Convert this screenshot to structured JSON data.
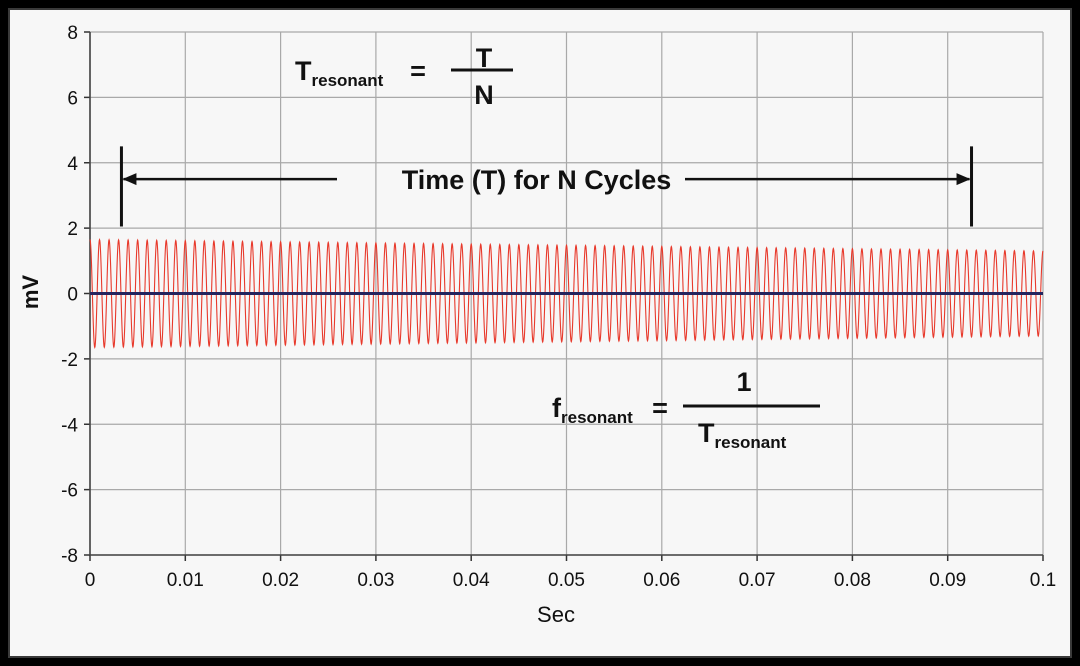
{
  "chart_data": {
    "type": "line",
    "title": "",
    "xlabel": "Sec",
    "ylabel": "mV",
    "xlim": [
      0,
      0.1
    ],
    "ylim": [
      -8,
      8
    ],
    "x_ticks": [
      0,
      0.01,
      0.02,
      0.03,
      0.04,
      0.05,
      0.06,
      0.07,
      0.08,
      0.09,
      0.1
    ],
    "x_tick_labels": [
      "0",
      "0.01",
      "0.02",
      "0.03",
      "0.04",
      "0.05",
      "0.06",
      "0.07",
      "0.08",
      "0.09",
      "0.1"
    ],
    "y_ticks": [
      8,
      6,
      4,
      2,
      0,
      -2,
      -4,
      -6,
      -8
    ],
    "y_tick_labels": [
      "8",
      "6",
      "4",
      "2",
      "0",
      "-2",
      "-4",
      "-6",
      "-8"
    ],
    "grid": true,
    "series": [
      {
        "name": "signal",
        "kind": "decaying sinusoid",
        "color": "#e8392b",
        "frequency_hz": 1000,
        "amplitude_start_mv": 1.65,
        "amplitude_end_mv": 1.3,
        "x_start": 0,
        "x_end": 0.1
      },
      {
        "name": "baseline",
        "color": "#24245e",
        "y": 0
      }
    ],
    "annotations": {
      "interval_label": "Time (T) for N Cycles",
      "interval_start_x": 0.0033,
      "interval_end_x": 0.0925,
      "formula_period": {
        "lhs": "T",
        "lhs_sub": "resonant",
        "equals": "=",
        "numerator": "T",
        "denominator": "N"
      },
      "formula_freq": {
        "lhs": "f",
        "lhs_sub": "resonant",
        "equals": "=",
        "numerator": "1",
        "denominator": "T",
        "denominator_sub": "resonant"
      }
    }
  }
}
